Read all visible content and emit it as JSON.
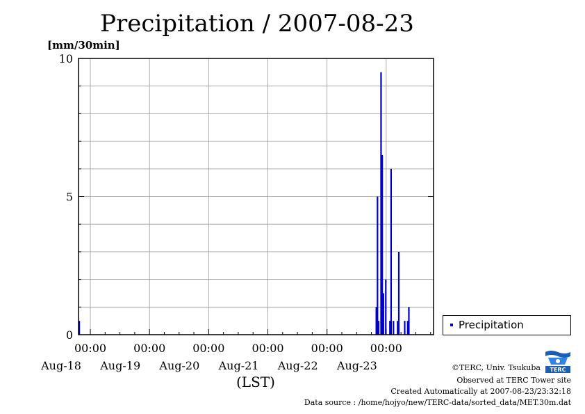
{
  "title": "Precipitation / 2007-08-23",
  "unit_label": "[mm/30min]",
  "x_axis_title": "(LST)",
  "legend": {
    "label": "Precipitation",
    "color": "#0000cc"
  },
  "credits": {
    "copyright": "©TERC, Univ. Tsukuba",
    "site": "Observed at TERC Tower site",
    "created": "Created Automatically at 2007-08-23/23:32:18",
    "source": "Data source : /home/hojyo/new/TERC-data/sorted_data/MET.30m.dat"
  },
  "logo_text": "TERC",
  "chart_data": {
    "type": "bar",
    "ylim": [
      0,
      10
    ],
    "y_ticks": [
      0,
      5,
      10
    ],
    "x_range_days": [
      -0.2,
      5.8
    ],
    "x_ticks": [
      {
        "time": "00:00",
        "date": "Aug-18"
      },
      {
        "time": "00:00",
        "date": "Aug-19"
      },
      {
        "time": "00:00",
        "date": "Aug-20"
      },
      {
        "time": "00:00",
        "date": "Aug-21"
      },
      {
        "time": "00:00",
        "date": "Aug-22"
      },
      {
        "time": "00:00",
        "date": "Aug-23"
      }
    ],
    "grid": true,
    "legend_position": "right",
    "series": [
      {
        "name": "Precipitation",
        "color": "#0000cc",
        "points": [
          {
            "day": -0.2,
            "value": 0.5
          },
          {
            "day": 4.82,
            "value": 1.0
          },
          {
            "day": 4.84,
            "value": 5.0
          },
          {
            "day": 4.86,
            "value": 0.5
          },
          {
            "day": 4.9,
            "value": 9.5
          },
          {
            "day": 4.92,
            "value": 6.5
          },
          {
            "day": 4.94,
            "value": 1.5
          },
          {
            "day": 4.98,
            "value": 2.0
          },
          {
            "day": 5.05,
            "value": 0.5
          },
          {
            "day": 5.07,
            "value": 6.0
          },
          {
            "day": 5.11,
            "value": 0.5
          },
          {
            "day": 5.18,
            "value": 0.5
          },
          {
            "day": 5.2,
            "value": 3.0
          },
          {
            "day": 5.3,
            "value": 0.5
          },
          {
            "day": 5.35,
            "value": 0.5
          },
          {
            "day": 5.37,
            "value": 1.0
          }
        ]
      }
    ]
  }
}
